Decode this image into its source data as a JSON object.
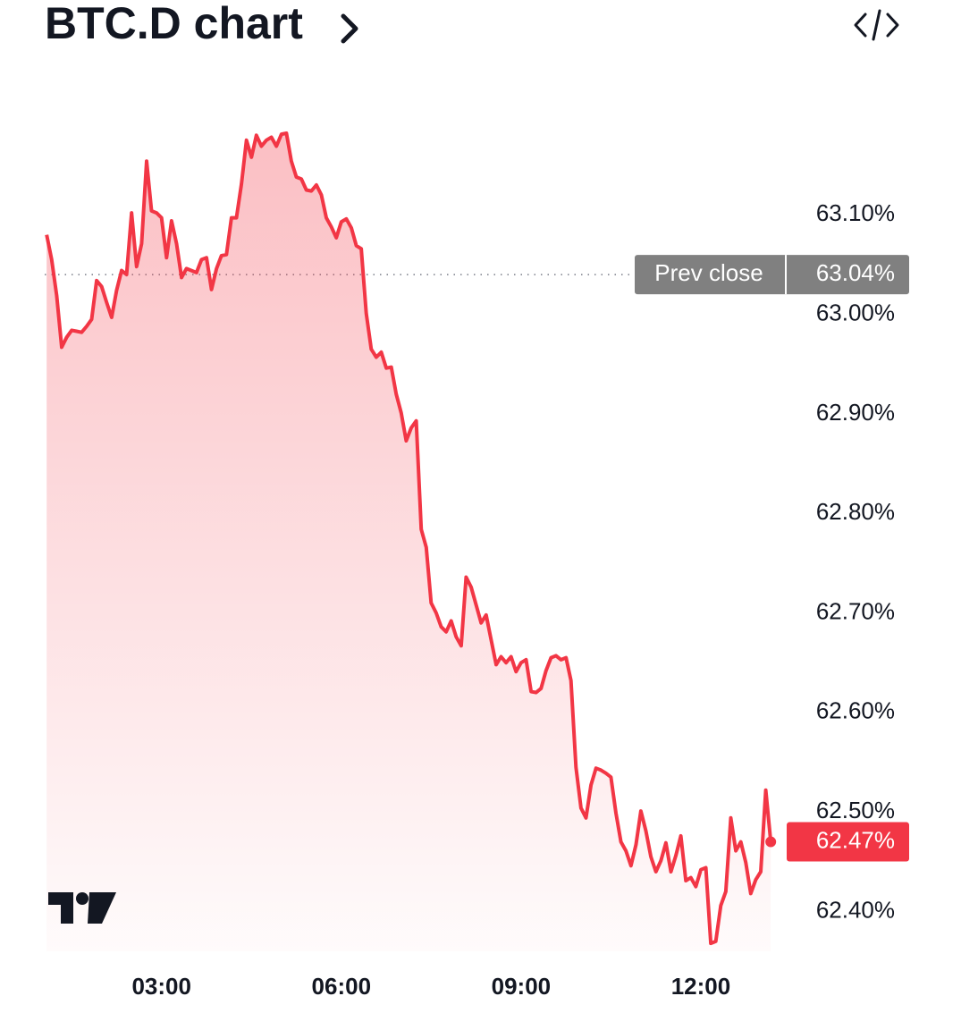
{
  "chart_data": {
    "type": "area",
    "title": "BTC.D chart",
    "x": [
      65,
      70,
      75,
      80,
      85,
      90,
      95,
      100,
      105,
      110,
      115,
      120,
      125,
      130,
      135,
      140,
      145,
      150,
      155,
      160,
      165,
      170,
      175,
      180,
      185,
      190,
      195,
      200,
      205,
      210,
      215,
      220,
      225,
      230,
      235,
      240,
      245,
      250,
      255,
      260,
      265,
      270,
      275,
      280,
      285,
      290,
      295,
      300,
      305,
      310,
      315,
      320,
      325,
      330,
      335,
      340,
      345,
      350,
      355,
      360,
      365,
      370,
      375,
      380,
      385,
      390,
      395,
      400,
      405,
      410,
      415,
      420,
      425,
      430,
      435,
      440,
      445,
      450,
      455,
      460,
      465,
      470,
      475,
      480,
      485,
      490,
      495,
      500,
      505,
      510,
      515,
      520,
      525,
      530,
      535,
      540,
      545,
      550,
      555,
      560,
      565,
      570,
      575,
      580,
      585,
      590,
      595,
      600,
      605,
      610,
      615,
      620,
      625,
      630,
      635,
      640,
      645,
      650,
      655,
      660,
      665,
      670,
      675,
      680,
      685,
      690,
      695,
      700,
      705,
      710,
      715,
      720,
      725,
      730,
      735,
      740,
      745,
      750,
      755,
      760,
      765,
      770,
      775,
      780,
      785,
      790
    ],
    "series": [
      {
        "name": "BTC.D",
        "color": "#f23645",
        "values": [
          63.08,
          63.055,
          63.019,
          62.967,
          62.977,
          62.984,
          62.983,
          62.982,
          62.988,
          62.995,
          63.034,
          63.028,
          63.012,
          62.997,
          63.024,
          63.044,
          63.04,
          63.102,
          63.048,
          63.071,
          63.154,
          63.104,
          63.102,
          63.097,
          63.057,
          63.094,
          63.071,
          63.037,
          63.046,
          63.044,
          63.042,
          63.055,
          63.057,
          63.025,
          63.046,
          63.059,
          63.06,
          63.097,
          63.097,
          63.131,
          63.175,
          63.158,
          63.18,
          63.169,
          63.175,
          63.178,
          63.169,
          63.181,
          63.182,
          63.154,
          63.138,
          63.136,
          63.125,
          63.124,
          63.13,
          63.12,
          63.097,
          63.088,
          63.077,
          63.093,
          63.096,
          63.087,
          63.069,
          63.066,
          63.001,
          62.965,
          62.957,
          62.962,
          62.946,
          62.947,
          62.92,
          62.901,
          62.873,
          62.886,
          62.893,
          62.784,
          62.766,
          62.71,
          62.7,
          62.686,
          62.681,
          62.692,
          62.676,
          62.667,
          62.736,
          62.726,
          62.708,
          62.69,
          62.698,
          62.673,
          62.648,
          62.656,
          62.65,
          62.656,
          62.641,
          62.65,
          62.653,
          62.621,
          62.62,
          62.624,
          62.642,
          62.655,
          62.657,
          62.653,
          62.655,
          62.632,
          62.545,
          62.504,
          62.494,
          62.527,
          62.544,
          62.542,
          62.539,
          62.535,
          62.499,
          62.47,
          62.461,
          62.446,
          62.467,
          62.501,
          62.481,
          62.455,
          62.44,
          62.451,
          62.469,
          62.44,
          62.456,
          62.476,
          62.431,
          62.434,
          62.425,
          62.442,
          62.444,
          62.368,
          62.37,
          62.406,
          62.42,
          62.494,
          62.461,
          62.47,
          62.449,
          62.418,
          62.432,
          62.44,
          62.522,
          62.47
        ]
      }
    ],
    "last_value_label": "62.47%",
    "prev_close": {
      "label": "Prev close",
      "value": 63.04,
      "value_label": "63.04%"
    },
    "xlim": [
      63,
      797
    ],
    "xticks": [
      {
        "value": 180,
        "label": "03:00"
      },
      {
        "value": 360,
        "label": "06:00"
      },
      {
        "value": 540,
        "label": "09:00"
      },
      {
        "value": 720,
        "label": "12:00"
      }
    ],
    "ylim": [
      62.36,
      63.2
    ],
    "yticks": [
      {
        "value": 62.4,
        "label": "62.40%"
      },
      {
        "value": 62.5,
        "label": "62.50%"
      },
      {
        "value": 62.6,
        "label": "62.60%"
      },
      {
        "value": 62.7,
        "label": "62.70%"
      },
      {
        "value": 62.8,
        "label": "62.80%"
      },
      {
        "value": 62.9,
        "label": "62.90%"
      },
      {
        "value": 63.0,
        "label": "63.00%"
      },
      {
        "value": 63.1,
        "label": "63.10%"
      }
    ],
    "grid": false
  }
}
